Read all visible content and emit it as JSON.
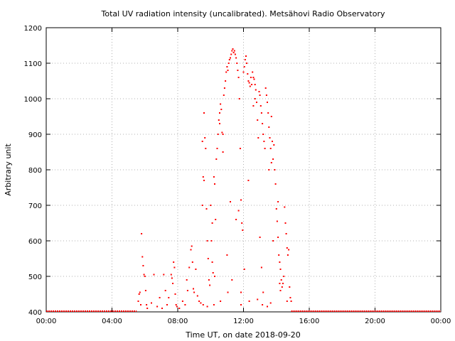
{
  "chart_data": {
    "type": "scatter",
    "title": "Total UV radiation intensity (uncalibrated). Metsähovi Radio Observatory",
    "xlabel": "Time UT, on date 2018-09-20",
    "ylabel": "Arbitrary unit",
    "x_unit": "hours UT",
    "xlim": [
      0,
      24
    ],
    "ylim": [
      400,
      1200
    ],
    "x_ticks": [
      0,
      4,
      8,
      12,
      16,
      20,
      24
    ],
    "x_tick_labels": [
      "00:00",
      "04:00",
      "08:00",
      "12:00",
      "16:00",
      "20:00",
      "00:00"
    ],
    "y_ticks": [
      400,
      500,
      600,
      700,
      800,
      900,
      1000,
      1100,
      1200
    ],
    "y_tick_labels": [
      "400",
      "500",
      "600",
      "700",
      "800",
      "900",
      "1000",
      "1100",
      "1200"
    ],
    "grid": true,
    "marker_color": "#ff0000",
    "series": [
      {
        "name": "",
        "points": [
          [
            5.6,
            430
          ],
          [
            5.65,
            450
          ],
          [
            5.7,
            455
          ],
          [
            5.75,
            420
          ],
          [
            5.8,
            620
          ],
          [
            5.85,
            555
          ],
          [
            5.9,
            530
          ],
          [
            5.95,
            505
          ],
          [
            6.0,
            500
          ],
          [
            6.05,
            460
          ],
          [
            6.1,
            420
          ],
          [
            6.15,
            410
          ],
          [
            6.4,
            425
          ],
          [
            6.55,
            505
          ],
          [
            6.75,
            415
          ],
          [
            6.9,
            440
          ],
          [
            7.05,
            410
          ],
          [
            7.15,
            505
          ],
          [
            7.25,
            460
          ],
          [
            7.35,
            420
          ],
          [
            7.45,
            440
          ],
          [
            7.6,
            505
          ],
          [
            7.65,
            495
          ],
          [
            7.7,
            480
          ],
          [
            7.75,
            540
          ],
          [
            7.8,
            525
          ],
          [
            7.85,
            450
          ],
          [
            7.9,
            420
          ],
          [
            7.95,
            415
          ],
          [
            8.1,
            410
          ],
          [
            8.3,
            430
          ],
          [
            8.45,
            420
          ],
          [
            8.55,
            490
          ],
          [
            8.6,
            460
          ],
          [
            8.7,
            525
          ],
          [
            8.8,
            575
          ],
          [
            8.85,
            585
          ],
          [
            8.9,
            540
          ],
          [
            8.95,
            465
          ],
          [
            9.0,
            455
          ],
          [
            9.1,
            520
          ],
          [
            9.2,
            445
          ],
          [
            9.3,
            430
          ],
          [
            9.4,
            425
          ],
          [
            9.5,
            700
          ],
          [
            9.55,
            780
          ],
          [
            9.6,
            960
          ],
          [
            9.65,
            890
          ],
          [
            9.7,
            860
          ],
          [
            9.75,
            690
          ],
          [
            9.8,
            600
          ],
          [
            9.85,
            550
          ],
          [
            9.9,
            490
          ],
          [
            9.95,
            475
          ],
          [
            10.0,
            700
          ],
          [
            10.05,
            600
          ],
          [
            10.1,
            540
          ],
          [
            10.15,
            510
          ],
          [
            10.2,
            780
          ],
          [
            10.25,
            760
          ],
          [
            10.3,
            660
          ],
          [
            10.35,
            830
          ],
          [
            10.4,
            860
          ],
          [
            10.45,
            900
          ],
          [
            10.5,
            940
          ],
          [
            10.55,
            960
          ],
          [
            10.6,
            985
          ],
          [
            10.65,
            970
          ],
          [
            10.7,
            905
          ],
          [
            10.75,
            900
          ],
          [
            10.8,
            1010
          ],
          [
            10.85,
            1030
          ],
          [
            10.9,
            1050
          ],
          [
            10.95,
            1075
          ],
          [
            11.0,
            1090
          ],
          [
            11.05,
            1080
          ],
          [
            11.1,
            1100
          ],
          [
            11.15,
            1110
          ],
          [
            11.2,
            1115
          ],
          [
            11.25,
            1125
          ],
          [
            11.3,
            1135
          ],
          [
            11.35,
            1140
          ],
          [
            11.4,
            1130
          ],
          [
            11.45,
            1135
          ],
          [
            11.5,
            1125
          ],
          [
            11.55,
            1115
          ],
          [
            11.6,
            1100
          ],
          [
            11.65,
            1080
          ],
          [
            11.7,
            1060
          ],
          [
            11.75,
            1000
          ],
          [
            11.8,
            860
          ],
          [
            11.85,
            715
          ],
          [
            11.9,
            650
          ],
          [
            11.95,
            630
          ],
          [
            12.0,
            1075
          ],
          [
            12.05,
            1090
          ],
          [
            12.1,
            1110
          ],
          [
            12.15,
            1120
          ],
          [
            12.2,
            1100
          ],
          [
            12.25,
            1070
          ],
          [
            12.3,
            1050
          ],
          [
            12.35,
            1045
          ],
          [
            12.4,
            1035
          ],
          [
            12.45,
            1060
          ],
          [
            12.5,
            1040
          ],
          [
            12.55,
            1075
          ],
          [
            12.6,
            1060
          ],
          [
            12.65,
            1055
          ],
          [
            12.7,
            1040
          ],
          [
            12.75,
            1025
          ],
          [
            12.8,
            990
          ],
          [
            12.85,
            940
          ],
          [
            12.9,
            890
          ],
          [
            12.95,
            1020
          ],
          [
            13.0,
            1010
          ],
          [
            13.05,
            980
          ],
          [
            13.1,
            960
          ],
          [
            13.15,
            930
          ],
          [
            13.2,
            900
          ],
          [
            13.25,
            880
          ],
          [
            13.3,
            860
          ],
          [
            13.35,
            1030
          ],
          [
            13.4,
            1010
          ],
          [
            13.45,
            990
          ],
          [
            13.5,
            960
          ],
          [
            13.55,
            920
          ],
          [
            13.6,
            890
          ],
          [
            13.65,
            860
          ],
          [
            13.7,
            820
          ],
          [
            13.75,
            880
          ],
          [
            13.8,
            830
          ],
          [
            13.85,
            870
          ],
          [
            13.9,
            800
          ],
          [
            13.95,
            760
          ],
          [
            14.0,
            690
          ],
          [
            14.05,
            655
          ],
          [
            14.1,
            610
          ],
          [
            14.15,
            560
          ],
          [
            14.2,
            540
          ],
          [
            14.25,
            520
          ],
          [
            14.3,
            490
          ],
          [
            14.35,
            470
          ],
          [
            14.4,
            480
          ],
          [
            14.45,
            500
          ],
          [
            14.5,
            695
          ],
          [
            14.55,
            650
          ],
          [
            14.6,
            620
          ],
          [
            14.65,
            580
          ],
          [
            14.7,
            560
          ],
          [
            14.75,
            575
          ],
          [
            14.8,
            470
          ],
          [
            14.85,
            440
          ],
          [
            14.9,
            430
          ],
          [
            9.5,
            880
          ],
          [
            9.6,
            770
          ],
          [
            10.1,
            650
          ],
          [
            10.25,
            500
          ],
          [
            10.55,
            930
          ],
          [
            10.75,
            850
          ],
          [
            11.0,
            560
          ],
          [
            11.2,
            710
          ],
          [
            11.55,
            660
          ],
          [
            11.7,
            685
          ],
          [
            11.85,
            455
          ],
          [
            12.05,
            520
          ],
          [
            12.3,
            770
          ],
          [
            12.6,
            980
          ],
          [
            12.7,
            1000
          ],
          [
            13.0,
            610
          ],
          [
            13.1,
            525
          ],
          [
            13.2,
            455
          ],
          [
            13.55,
            800
          ],
          [
            13.7,
            950
          ],
          [
            13.8,
            600
          ],
          [
            14.1,
            710
          ],
          [
            14.2,
            480
          ],
          [
            9.55,
            420
          ],
          [
            9.8,
            415
          ],
          [
            10.2,
            420
          ],
          [
            10.6,
            430
          ],
          [
            11.05,
            455
          ],
          [
            11.3,
            490
          ],
          [
            11.85,
            420
          ],
          [
            12.35,
            430
          ],
          [
            12.85,
            435
          ],
          [
            13.15,
            420
          ],
          [
            13.45,
            415
          ],
          [
            13.65,
            425
          ],
          [
            14.25,
            460
          ],
          [
            14.65,
            430
          ]
        ]
      }
    ],
    "baseline_segments": [
      {
        "y": 400,
        "x_from": 0.0,
        "x_to": 5.5
      },
      {
        "y": 400,
        "x_from": 14.9,
        "x_to": 24.0
      }
    ]
  }
}
